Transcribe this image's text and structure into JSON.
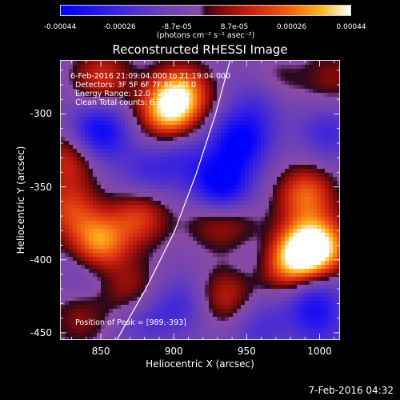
{
  "colorbar": {
    "ticks": [
      "-0.00044",
      "-0.00026",
      "-8.7e-05",
      "8.7e-05",
      "0.00026",
      "0.00044"
    ],
    "label": "(photons cm⁻² s⁻¹ asec⁻²)"
  },
  "chart_data": {
    "type": "heatmap",
    "title": "Reconstructed RHESSI Image",
    "xlabel": "Heliocentric X (arcsec)",
    "ylabel": "Heliocentric Y (arcsec)",
    "xlim": [
      822,
      1014
    ],
    "ylim": [
      -455,
      -263
    ],
    "xticks": [
      "850",
      "900",
      "950",
      "1000"
    ],
    "yticks": [
      "-300",
      "-350",
      "-400",
      "-450"
    ],
    "color_range": [
      -0.00044,
      0.00044
    ],
    "limb_line": [
      [
        860,
        -455
      ],
      [
        880,
        -420
      ],
      [
        900,
        -380
      ],
      [
        915,
        -340
      ],
      [
        928,
        -300
      ],
      [
        938,
        -263
      ]
    ],
    "sources": [
      {
        "x": 989,
        "y": -393,
        "value": 0.00044
      },
      {
        "x": 848,
        "y": -388,
        "value": 0.0004
      },
      {
        "x": 895,
        "y": -298,
        "value": 0.0004
      },
      {
        "x": 905,
        "y": -285,
        "value": 0.00034
      },
      {
        "x": 990,
        "y": -355,
        "value": 0.00032
      },
      {
        "x": 1002,
        "y": -390,
        "value": 0.0003
      },
      {
        "x": 975,
        "y": -403,
        "value": 0.00028
      },
      {
        "x": 828,
        "y": -330,
        "value": 0.00024
      },
      {
        "x": 828,
        "y": -365,
        "value": 0.00024
      },
      {
        "x": 850,
        "y": -275,
        "value": 0.00024
      },
      {
        "x": 876,
        "y": -370,
        "value": 0.00026
      },
      {
        "x": 935,
        "y": -425,
        "value": 0.00022
      },
      {
        "x": 870,
        "y": -420,
        "value": 0.00018
      },
      {
        "x": 835,
        "y": -440,
        "value": 0.00014
      },
      {
        "x": 968,
        "y": -280,
        "value": 0.00016
      },
      {
        "x": 1008,
        "y": -275,
        "value": 0.00014
      },
      {
        "x": 925,
        "y": -372,
        "value": 0.00014
      },
      {
        "x": 945,
        "y": -378,
        "value": 0.00012
      },
      {
        "x": 848,
        "y": -312,
        "value": -0.00036
      },
      {
        "x": 945,
        "y": -318,
        "value": -0.00036
      },
      {
        "x": 932,
        "y": -348,
        "value": -0.0004
      },
      {
        "x": 995,
        "y": -428,
        "value": -0.00026
      },
      {
        "x": 960,
        "y": -290,
        "value": -0.0002
      },
      {
        "x": 1005,
        "y": -312,
        "value": -0.00018
      },
      {
        "x": 905,
        "y": -330,
        "value": -0.00016
      },
      {
        "x": 905,
        "y": -430,
        "value": -0.00016
      },
      {
        "x": 958,
        "y": -445,
        "value": -0.00016
      },
      {
        "x": 880,
        "y": -340,
        "value": -0.00016
      },
      {
        "x": 880,
        "y": -440,
        "value": -0.00014
      },
      {
        "x": 960,
        "y": -395,
        "value": -0.00012
      },
      {
        "x": 1000,
        "y": -448,
        "value": -0.00012
      },
      {
        "x": 840,
        "y": -405,
        "value": -0.0001
      }
    ]
  },
  "overlay": {
    "time_range": "6-Feb-2016 21:09:04.000 to 21:19:04.000",
    "detectors": "Detectors: 3F 5F 6F 7F 8F, Att 0",
    "energy": "Energy Range: 12.0 - 25.0 keV",
    "clean": "Clean     Total counts: 6.32E+03",
    "peak": "Position of Peak = [989,-393]"
  },
  "timestamp": "7-Feb-2016 04:32"
}
